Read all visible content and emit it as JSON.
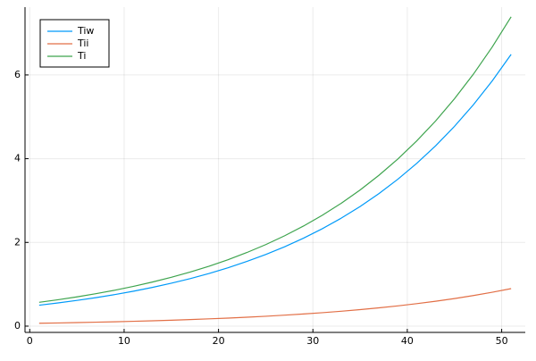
{
  "chart_data": {
    "type": "line",
    "x": [
      1,
      3,
      5,
      7,
      9,
      11,
      13,
      15,
      17,
      19,
      21,
      23,
      25,
      27,
      29,
      31,
      33,
      35,
      37,
      39,
      41,
      43,
      45,
      47,
      49,
      51
    ],
    "series": [
      {
        "name": "Tiw",
        "color": "#009af9",
        "values": [
          0.5,
          0.554,
          0.614,
          0.68,
          0.753,
          0.835,
          0.925,
          1.025,
          1.135,
          1.258,
          1.394,
          1.545,
          1.711,
          1.896,
          2.101,
          2.328,
          2.579,
          2.858,
          3.167,
          3.509,
          3.888,
          4.307,
          4.773,
          5.288,
          5.859,
          6.492
        ]
      },
      {
        "name": "Tii",
        "color": "#e26f46",
        "values": [
          0.069,
          0.076,
          0.085,
          0.094,
          0.104,
          0.115,
          0.128,
          0.141,
          0.157,
          0.174,
          0.192,
          0.213,
          0.236,
          0.262,
          0.29,
          0.321,
          0.356,
          0.394,
          0.437,
          0.484,
          0.537,
          0.594,
          0.659,
          0.73,
          0.809,
          0.896
        ]
      },
      {
        "name": "Ti",
        "color": "#3ea44e",
        "values": [
          0.569,
          0.63,
          0.699,
          0.774,
          0.857,
          0.95,
          1.053,
          1.166,
          1.292,
          1.432,
          1.586,
          1.758,
          1.947,
          2.158,
          2.391,
          2.649,
          2.935,
          3.252,
          3.604,
          3.993,
          4.425,
          4.901,
          5.432,
          6.018,
          6.668,
          7.388
        ]
      }
    ],
    "xlim": [
      -0.5,
      52.5
    ],
    "xticks": [
      0,
      10,
      20,
      30,
      40,
      50
    ],
    "ylim": [
      -0.15,
      7.62
    ],
    "yticks": [
      0,
      2,
      4,
      6
    ],
    "grid": true,
    "legend": "top-left"
  }
}
